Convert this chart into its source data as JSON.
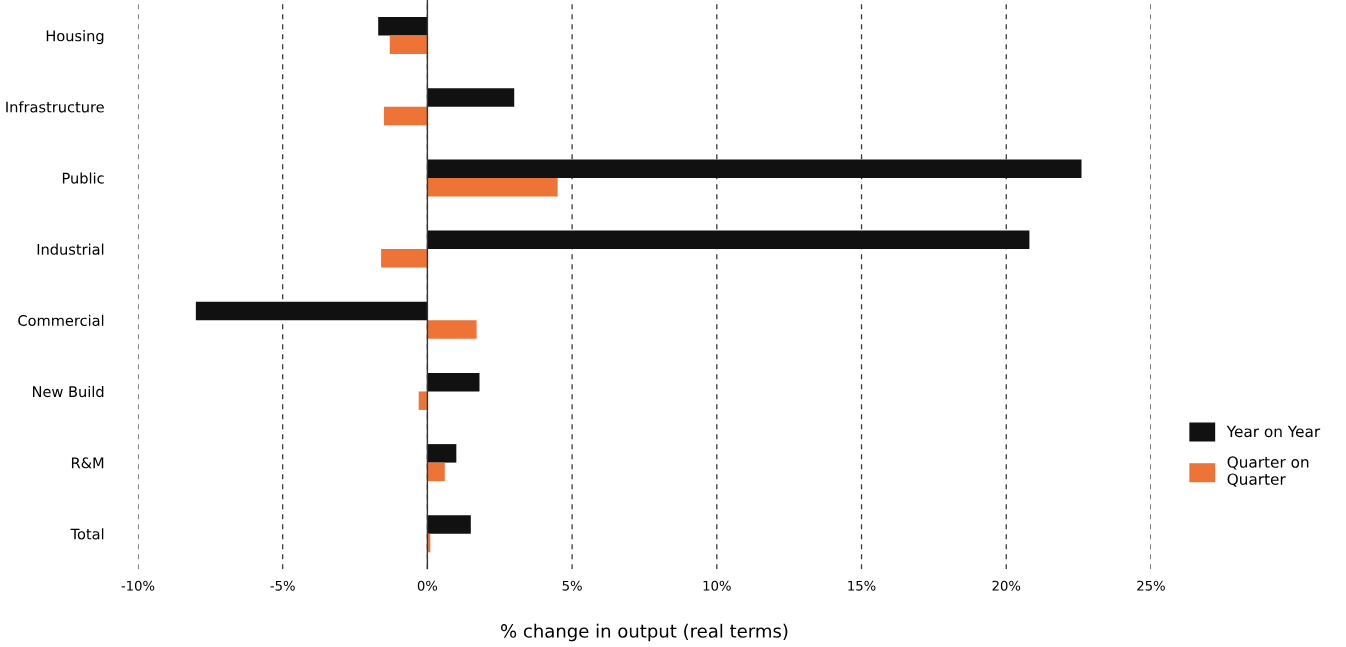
{
  "chart_data": {
    "type": "bar",
    "orientation": "horizontal",
    "xlabel": "% change in output (real terms)",
    "categories": [
      "Housing",
      "Infrastructure",
      "Public",
      "Industrial",
      "Commercial",
      "New Build",
      "R&M",
      "Total"
    ],
    "series": [
      {
        "name": "Year on Year",
        "color": "#111111",
        "values": [
          -1.7,
          3.0,
          22.6,
          20.8,
          -8.0,
          1.8,
          1.0,
          1.5
        ]
      },
      {
        "name": "Quarter on Quarter",
        "color": "#ed7336",
        "values": [
          -1.3,
          -1.5,
          4.5,
          -1.6,
          1.7,
          -0.3,
          0.6,
          0.1
        ]
      }
    ],
    "xlim": [
      -10,
      25
    ],
    "xticks": [
      {
        "value": -10,
        "label": "-10%"
      },
      {
        "value": -5,
        "label": "-5%"
      },
      {
        "value": 0,
        "label": "0%"
      },
      {
        "value": 5,
        "label": "5%"
      },
      {
        "value": 10,
        "label": "10%"
      },
      {
        "value": 15,
        "label": "15%"
      },
      {
        "value": 20,
        "label": "20%"
      },
      {
        "value": 25,
        "label": "25%"
      }
    ],
    "ref_lines": [
      {
        "axis": "x",
        "value": 0,
        "color": "#333333",
        "line_style": "solid"
      }
    ],
    "grid": "x",
    "legend": "right"
  }
}
